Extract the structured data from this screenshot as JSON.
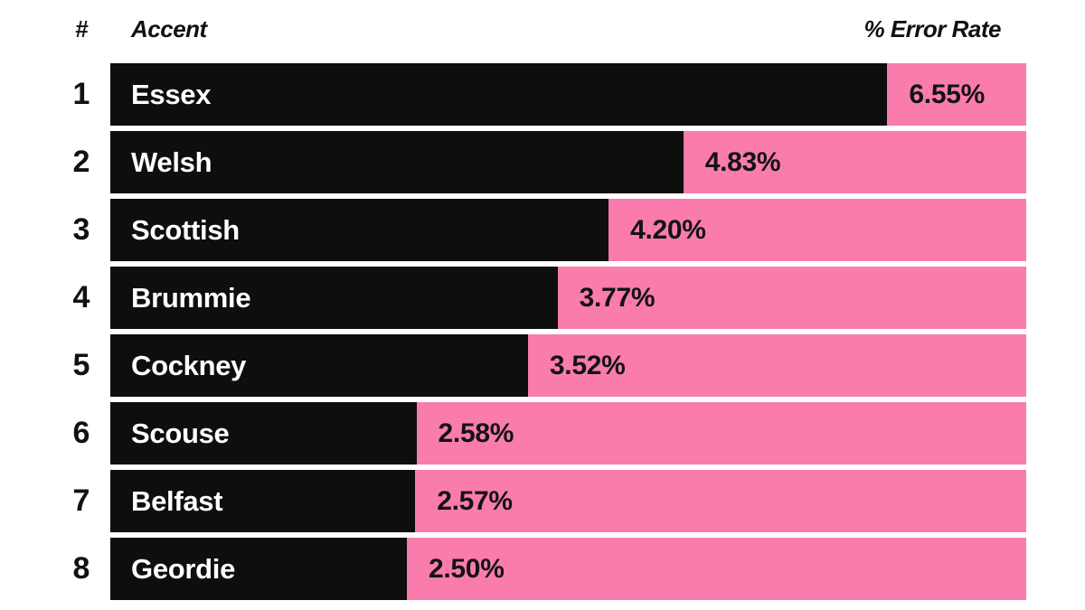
{
  "chart_data": {
    "type": "bar",
    "orientation": "horizontal",
    "title": "",
    "columns": {
      "rank": "#",
      "accent": "Accent",
      "value": "% Error Rate"
    },
    "categories": [
      "Essex",
      "Welsh",
      "Scottish",
      "Brummie",
      "Cockney",
      "Scouse",
      "Belfast",
      "Geordie"
    ],
    "values": [
      6.55,
      4.83,
      4.2,
      3.77,
      3.52,
      2.58,
      2.57,
      2.5
    ],
    "value_labels": [
      "6.55%",
      "4.83%",
      "4.20%",
      "3.77%",
      "3.52%",
      "2.58%",
      "2.57%",
      "2.50%"
    ],
    "ranks": [
      "1",
      "2",
      "3",
      "4",
      "5",
      "6",
      "7",
      "8"
    ],
    "xlabel": "% Error Rate",
    "ylabel": "Accent",
    "xlim": [
      0,
      7.72
    ],
    "grid": false,
    "legend": "none",
    "colors": {
      "bar": "#0e0e0e",
      "track": "#FA7CAC",
      "bar_text": "#ffffff",
      "value_text": "#131313",
      "header_text": "#111111",
      "background": "#ffffff"
    }
  }
}
